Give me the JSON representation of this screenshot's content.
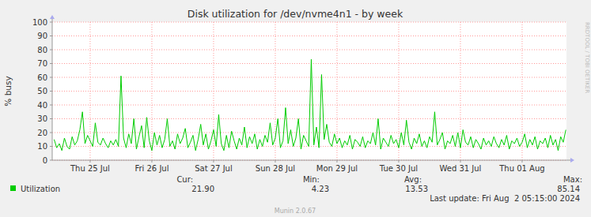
{
  "chart_data": {
    "type": "line",
    "title": "Disk utilization for /dev/nvme4n1 - by week",
    "ylabel": "% busy",
    "side_text": "RRDTOOL / TOBI OETIKER",
    "footer": "Munin 2.0.67",
    "last_update": "Last update: Fri Aug  2 05:15:00 2024",
    "grid": true,
    "xlim": [
      -2.75,
      197.25
    ],
    "xticks": [
      {
        "value": 12,
        "label": "Thu 25 Jul"
      },
      {
        "value": 36,
        "label": "Fri 26 Jul"
      },
      {
        "value": 60,
        "label": "Sat 27 Jul"
      },
      {
        "value": 84,
        "label": "Sun 28 Jul"
      },
      {
        "value": 108,
        "label": "Mon 29 Jul"
      },
      {
        "value": 132,
        "label": "Tue 30 Jul"
      },
      {
        "value": 156,
        "label": "Wed 31 Jul"
      },
      {
        "value": 180,
        "label": "Thu 01 Aug"
      }
    ],
    "ylim": [
      0,
      100
    ],
    "yticks": [
      0,
      10,
      20,
      30,
      40,
      50,
      60,
      70,
      80,
      90,
      100
    ],
    "x": [
      -2,
      -1,
      0,
      1,
      2,
      3,
      4,
      5,
      6,
      7,
      8,
      9,
      10,
      11,
      12,
      13,
      14,
      15,
      16,
      17,
      18,
      19,
      20,
      21,
      22,
      23,
      24,
      25,
      26,
      27,
      28,
      29,
      30,
      31,
      32,
      33,
      34,
      35,
      36,
      37,
      38,
      39,
      40,
      41,
      42,
      43,
      44,
      45,
      46,
      47,
      48,
      49,
      50,
      51,
      52,
      53,
      54,
      55,
      56,
      57,
      58,
      59,
      60,
      61,
      62,
      63,
      64,
      65,
      66,
      67,
      68,
      69,
      70,
      71,
      72,
      73,
      74,
      75,
      76,
      77,
      78,
      79,
      80,
      81,
      82,
      83,
      84,
      85,
      86,
      87,
      88,
      89,
      90,
      91,
      92,
      93,
      94,
      95,
      96,
      97,
      98,
      99,
      100,
      101,
      102,
      103,
      104,
      105,
      106,
      107,
      108,
      109,
      110,
      111,
      112,
      113,
      114,
      115,
      116,
      117,
      118,
      119,
      120,
      121,
      122,
      123,
      124,
      125,
      126,
      127,
      128,
      129,
      130,
      131,
      132,
      133,
      134,
      135,
      136,
      137,
      138,
      139,
      140,
      141,
      142,
      143,
      144,
      145,
      146,
      147,
      148,
      149,
      150,
      151,
      152,
      153,
      154,
      155,
      156,
      157,
      158,
      159,
      160,
      161,
      162,
      163,
      164,
      165,
      166,
      167,
      168,
      169,
      170,
      171,
      172,
      173,
      174,
      175,
      176,
      177,
      178,
      179,
      180,
      181,
      182,
      183,
      184,
      185,
      186,
      187,
      188,
      189,
      190,
      191,
      192,
      193,
      194,
      195,
      196,
      197
    ],
    "series": [
      {
        "name": "Utilization",
        "color": "#00cc00",
        "values": [
          15,
          9,
          12,
          7,
          16,
          10,
          8,
          17,
          11,
          14,
          22,
          35,
          12,
          18,
          14,
          10,
          27,
          13,
          11,
          16,
          12,
          9,
          14,
          11,
          15,
          10,
          61,
          16,
          9,
          19,
          12,
          30,
          8,
          17,
          25,
          9,
          31,
          14,
          7,
          20,
          11,
          18,
          9,
          15,
          30,
          10,
          14,
          8,
          19,
          12,
          16,
          23,
          9,
          13,
          18,
          7,
          15,
          26,
          11,
          19,
          8,
          14,
          22,
          10,
          33,
          12,
          7,
          18,
          9,
          21,
          14,
          8,
          16,
          11,
          24,
          9,
          17,
          12,
          19,
          8,
          15,
          10,
          18,
          13,
          27,
          11,
          16,
          30,
          9,
          14,
          38,
          12,
          22,
          10,
          16,
          30,
          8,
          18,
          14,
          10,
          73,
          11,
          24,
          9,
          62,
          15,
          26,
          13,
          10,
          19,
          12,
          16,
          9,
          14,
          11,
          18,
          8,
          15,
          13,
          10,
          17,
          9,
          14,
          12,
          20,
          11,
          30,
          8,
          16,
          13,
          10,
          18,
          12,
          15,
          9,
          20,
          11,
          29,
          13,
          8,
          16,
          12,
          19,
          10,
          14,
          9,
          17,
          13,
          35,
          11,
          15,
          20,
          8,
          14,
          12,
          18,
          10,
          20,
          9,
          22,
          13,
          11,
          17,
          9,
          15,
          12,
          8,
          16,
          11,
          14,
          10,
          17,
          12,
          9,
          15,
          11,
          18,
          8,
          14,
          12,
          16,
          10,
          13,
          19,
          9,
          15,
          11,
          17,
          8,
          14,
          12,
          16,
          9,
          18,
          11,
          15,
          7,
          17,
          13,
          22
        ]
      }
    ],
    "stats": [
      {
        "label": "Cur:",
        "value": "21.90"
      },
      {
        "label": "Min:",
        "value": "4.23"
      },
      {
        "label": "Avg:",
        "value": "13.53"
      },
      {
        "label": "Max:",
        "value": "85.14"
      }
    ]
  }
}
